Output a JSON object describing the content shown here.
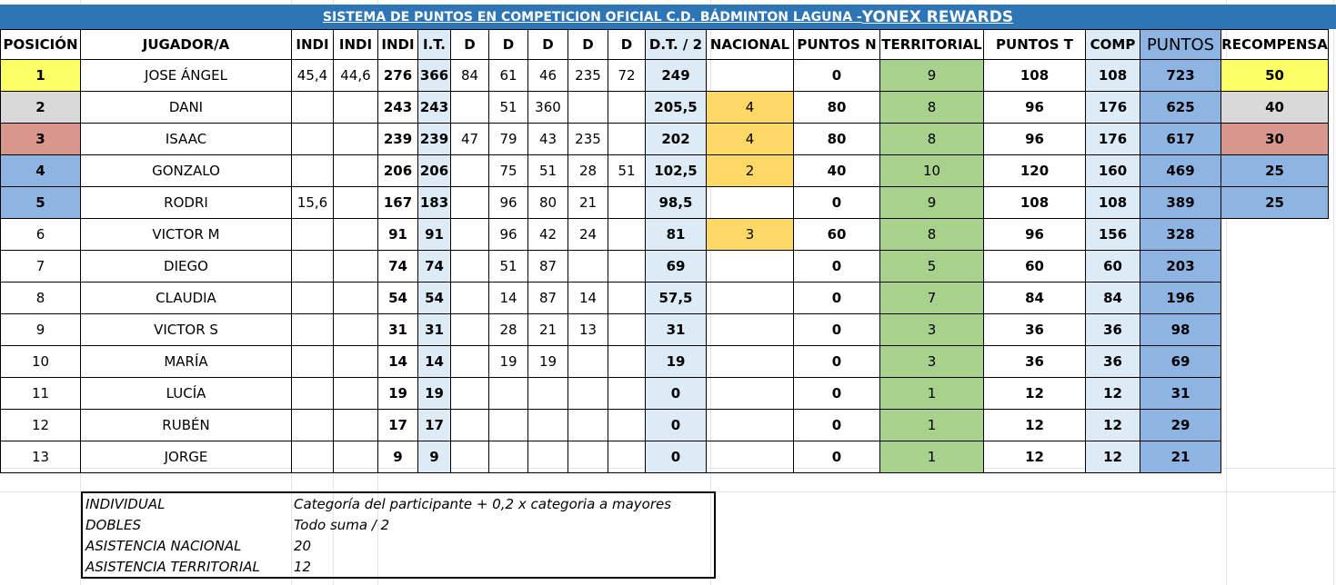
{
  "title": {
    "part1": "SISTEMA DE PUNTOS EN COMPETICION OFICIAL C.D. BÁDMINTON LAGUNA - ",
    "part2": "YONEX REWARDS"
  },
  "headers": [
    "POSICIÓN",
    "JUGADOR/A",
    "INDI",
    "INDI",
    "INDI",
    "I.T.",
    "D",
    "D",
    "D",
    "D",
    "D",
    "D.T. / 2",
    "NACIONAL",
    "PUNTOS N",
    "TERRITORIAL",
    "PUNTOS T",
    "COMP",
    "PUNTOS",
    "RECOMPENSA"
  ],
  "rows": [
    [
      "1",
      "JOSE ÁNGEL",
      "45,4",
      "44,6",
      "276",
      "366",
      "84",
      "61",
      "46",
      "235",
      "72",
      "249",
      "",
      "0",
      "9",
      "108",
      "108",
      "723",
      "50"
    ],
    [
      "2",
      "DANI",
      "",
      "",
      "243",
      "243",
      "",
      "51",
      "360",
      "",
      "",
      "205,5",
      "4",
      "80",
      "8",
      "96",
      "176",
      "625",
      "40"
    ],
    [
      "3",
      "ISAAC",
      "",
      "",
      "239",
      "239",
      "47",
      "79",
      "43",
      "235",
      "",
      "202",
      "4",
      "80",
      "8",
      "96",
      "176",
      "617",
      "30"
    ],
    [
      "4",
      "GONZALO",
      "",
      "",
      "206",
      "206",
      "",
      "75",
      "51",
      "28",
      "51",
      "102,5",
      "2",
      "40",
      "10",
      "120",
      "160",
      "469",
      "25"
    ],
    [
      "5",
      "RODRI",
      "15,6",
      "",
      "167",
      "183",
      "",
      "96",
      "80",
      "21",
      "",
      "98,5",
      "",
      "0",
      "9",
      "108",
      "108",
      "389",
      "25"
    ],
    [
      "6",
      "VICTOR M",
      "",
      "",
      "91",
      "91",
      "",
      "96",
      "42",
      "24",
      "",
      "81",
      "3",
      "60",
      "8",
      "96",
      "156",
      "328",
      ""
    ],
    [
      "7",
      "DIEGO",
      "",
      "",
      "74",
      "74",
      "",
      "51",
      "87",
      "",
      "",
      "69",
      "",
      "0",
      "5",
      "60",
      "60",
      "203",
      ""
    ],
    [
      "8",
      "CLAUDIA",
      "",
      "",
      "54",
      "54",
      "",
      "14",
      "87",
      "14",
      "",
      "57,5",
      "",
      "0",
      "7",
      "84",
      "84",
      "196",
      ""
    ],
    [
      "9",
      "VICTOR S",
      "",
      "",
      "31",
      "31",
      "",
      "28",
      "21",
      "13",
      "",
      "31",
      "",
      "0",
      "3",
      "36",
      "36",
      "98",
      ""
    ],
    [
      "10",
      "MARÍA",
      "",
      "",
      "14",
      "14",
      "",
      "19",
      "19",
      "",
      "",
      "19",
      "",
      "0",
      "3",
      "36",
      "36",
      "69",
      ""
    ],
    [
      "11",
      "LUCÍA",
      "",
      "",
      "19",
      "19",
      "",
      "",
      "",
      "",
      "",
      "0",
      "",
      "0",
      "1",
      "12",
      "12",
      "31",
      ""
    ],
    [
      "12",
      "RUBÉN",
      "",
      "",
      "17",
      "17",
      "",
      "",
      "",
      "",
      "",
      "0",
      "",
      "0",
      "1",
      "12",
      "12",
      "29",
      ""
    ],
    [
      "13",
      "JORGE",
      "",
      "",
      "9",
      "9",
      "",
      "",
      "",
      "",
      "",
      "0",
      "",
      "0",
      "1",
      "12",
      "12",
      "21",
      ""
    ]
  ],
  "podium_colors": [
    "#ffff66",
    "#d9d9d9",
    "#d9968c",
    "#8eb4e3",
    "#8eb4e3"
  ],
  "legend": [
    {
      "label": "INDIVIDUAL",
      "value": "Categoría del participante + 0,2 x categoria a mayores"
    },
    {
      "label": "DOBLES",
      "value": "Todo suma / 2"
    },
    {
      "label": "ASISTENCIA NACIONAL",
      "value": "20"
    },
    {
      "label": "ASISTENCIA TERRITORIAL",
      "value": "12"
    }
  ]
}
